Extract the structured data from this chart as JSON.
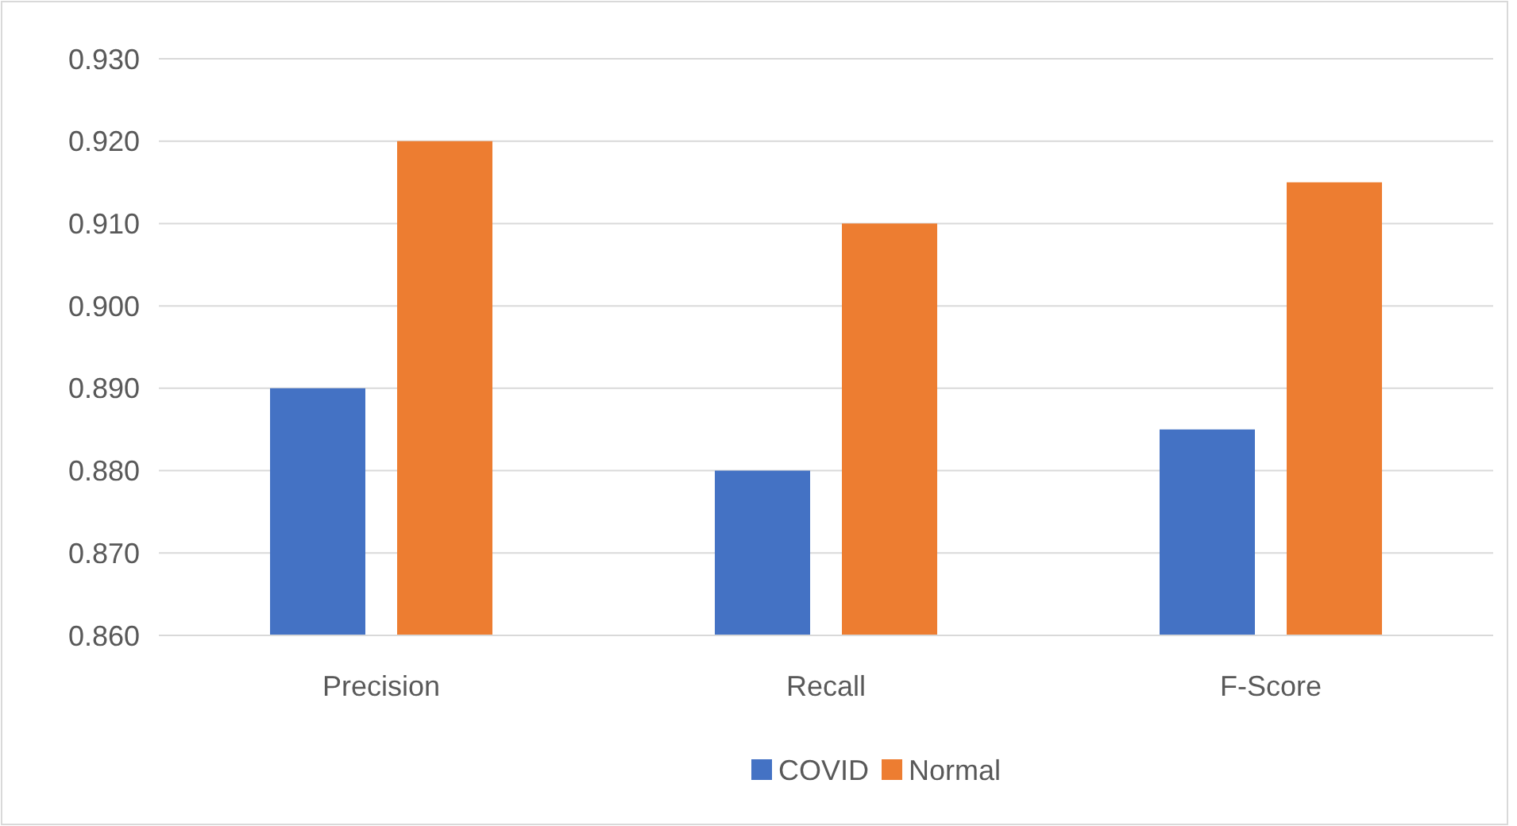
{
  "chart_data": {
    "type": "bar",
    "categories": [
      "Precision",
      "Recall",
      "F-Score"
    ],
    "series": [
      {
        "name": "COVID",
        "color": "#4472c4",
        "values": [
          0.89,
          0.88,
          0.885
        ]
      },
      {
        "name": "Normal",
        "color": "#ed7d31",
        "values": [
          0.92,
          0.91,
          0.915
        ]
      }
    ],
    "ylim": [
      0.86,
      0.93
    ],
    "yticks": [
      {
        "value": 0.86,
        "label": "0.860"
      },
      {
        "value": 0.87,
        "label": "0.870"
      },
      {
        "value": 0.88,
        "label": "0.880"
      },
      {
        "value": 0.89,
        "label": "0.890"
      },
      {
        "value": 0.9,
        "label": "0.900"
      },
      {
        "value": 0.91,
        "label": "0.910"
      },
      {
        "value": 0.92,
        "label": "0.920"
      },
      {
        "value": 0.93,
        "label": "0.930"
      }
    ],
    "grid": "y",
    "legend": "bottom"
  }
}
